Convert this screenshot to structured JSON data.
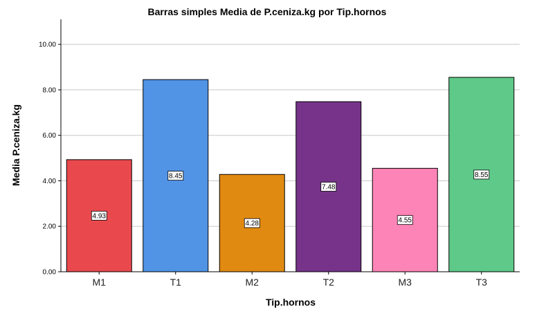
{
  "chart_data": {
    "type": "bar",
    "title": "Barras simples Media de P.ceniza.kg por Tip.hornos",
    "xlabel": "Tip.hornos",
    "ylabel": "Media P.ceniza.kg",
    "categories": [
      "M1",
      "T1",
      "M2",
      "T2",
      "M3",
      "T3"
    ],
    "values": [
      4.93,
      8.45,
      4.28,
      7.48,
      4.55,
      8.55
    ],
    "data_labels": [
      "4.93",
      "8.45",
      "4.28",
      "7.48",
      "4.55",
      "8.55"
    ],
    "colors": [
      "#e9494d",
      "#5193e5",
      "#e08a12",
      "#763389",
      "#fd84b6",
      "#5ec989"
    ],
    "ylim": [
      0,
      11.1
    ],
    "yticks": [
      0,
      2,
      4,
      6,
      8,
      10
    ],
    "ytick_labels": [
      "0.00",
      "2.00",
      "4.00",
      "6.00",
      "8.00",
      "10.00"
    ],
    "grid": true,
    "legend": "none"
  }
}
